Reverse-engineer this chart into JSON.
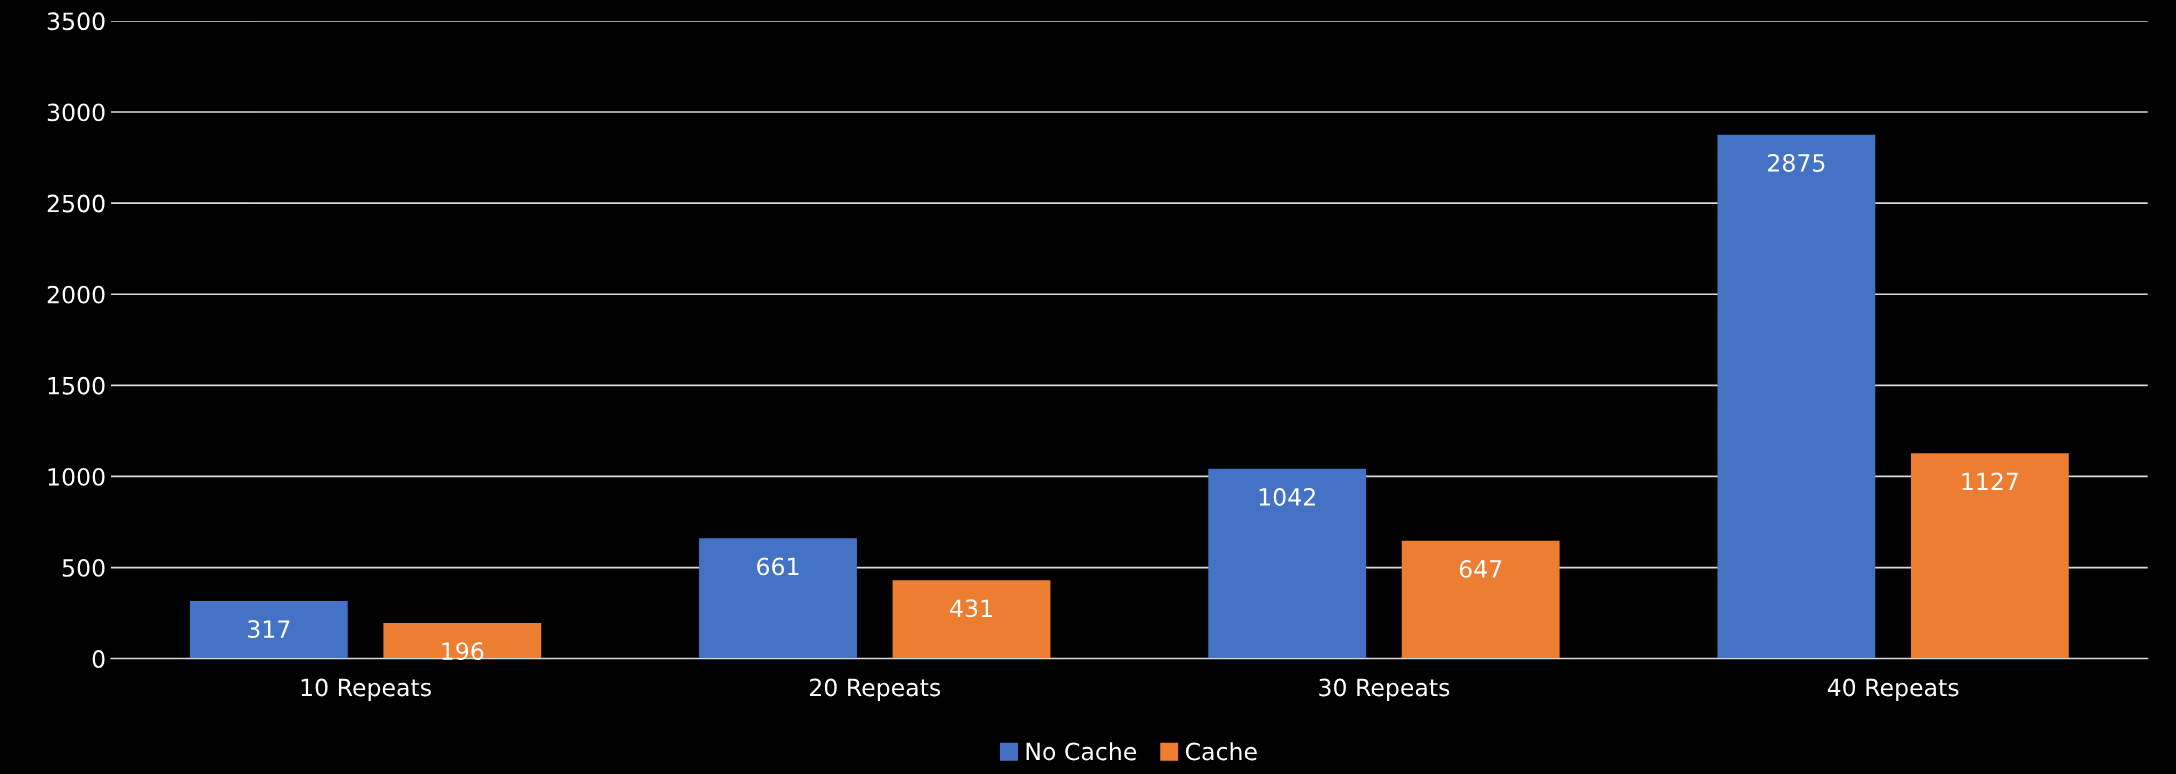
{
  "chart_data": {
    "type": "bar",
    "categories": [
      "10 Repeats",
      "20 Repeats",
      "30 Repeats",
      "40 Repeats"
    ],
    "series": [
      {
        "name": "No Cache",
        "color": "#4472c4",
        "values": [
          317,
          661,
          1042,
          2875
        ]
      },
      {
        "name": "Cache",
        "color": "#ed7d31",
        "values": [
          196,
          431,
          647,
          1127
        ]
      }
    ],
    "ylim": [
      0,
      3500
    ],
    "yticks": [
      0,
      500,
      1000,
      1500,
      2000,
      2500,
      3000,
      3500
    ],
    "grid": "y",
    "legend": "bottom",
    "data_labels": true
  }
}
